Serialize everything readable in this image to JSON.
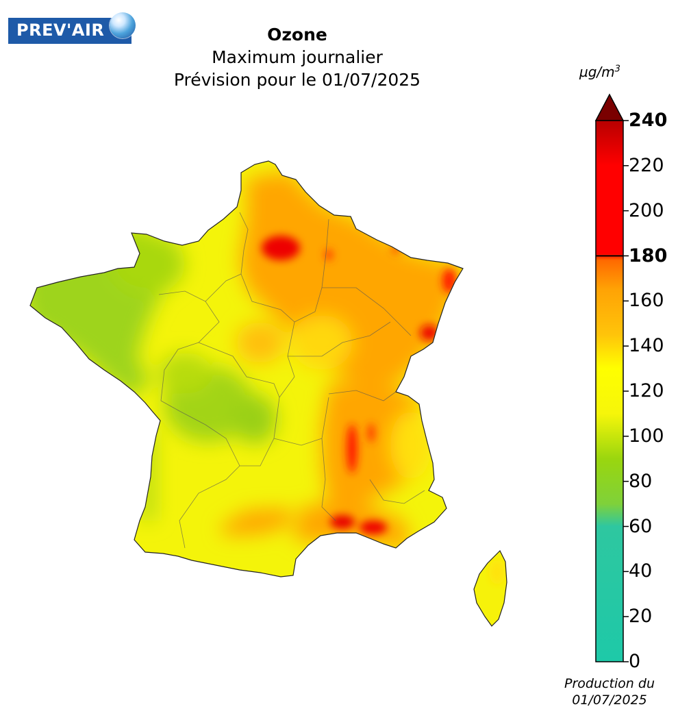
{
  "logo": {
    "text": "PREV'AIR"
  },
  "title": {
    "pollutant": "Ozone",
    "metric": "Maximum journalier",
    "forecast": "Prévision pour le 01/07/2025"
  },
  "colorbar": {
    "unit_base": "µg/m",
    "unit_exp": "3",
    "ticks": [
      {
        "value": "240",
        "bold": true
      },
      {
        "value": "220",
        "bold": false
      },
      {
        "value": "200",
        "bold": false
      },
      {
        "value": "180",
        "bold": true
      },
      {
        "value": "160",
        "bold": false
      },
      {
        "value": "140",
        "bold": false
      },
      {
        "value": "120",
        "bold": false
      },
      {
        "value": "100",
        "bold": false
      },
      {
        "value": "80",
        "bold": false
      },
      {
        "value": "60",
        "bold": false
      },
      {
        "value": "40",
        "bold": false
      },
      {
        "value": "20",
        "bold": false
      },
      {
        "value": "0",
        "bold": false
      }
    ],
    "scale": [
      {
        "value": 0,
        "color": "#1ec9a8"
      },
      {
        "value": 60,
        "color": "#2ec7a0"
      },
      {
        "value": 70,
        "color": "#7fd13a"
      },
      {
        "value": 90,
        "color": "#9ad60e"
      },
      {
        "value": 110,
        "color": "#f6f60a"
      },
      {
        "value": 130,
        "color": "#ffff00"
      },
      {
        "value": 145,
        "color": "#ffc40a"
      },
      {
        "value": 165,
        "color": "#ffa305"
      },
      {
        "value": 178,
        "color": "#ff6a00"
      },
      {
        "value": 181,
        "color": "#ff0000"
      },
      {
        "value": 220,
        "color": "#ff0000"
      },
      {
        "value": 240,
        "color": "#b80000"
      }
    ],
    "overflow_color": "#7a0000"
  },
  "footer": {
    "production_label": "Production du",
    "production_date": "01/07/2025"
  }
}
